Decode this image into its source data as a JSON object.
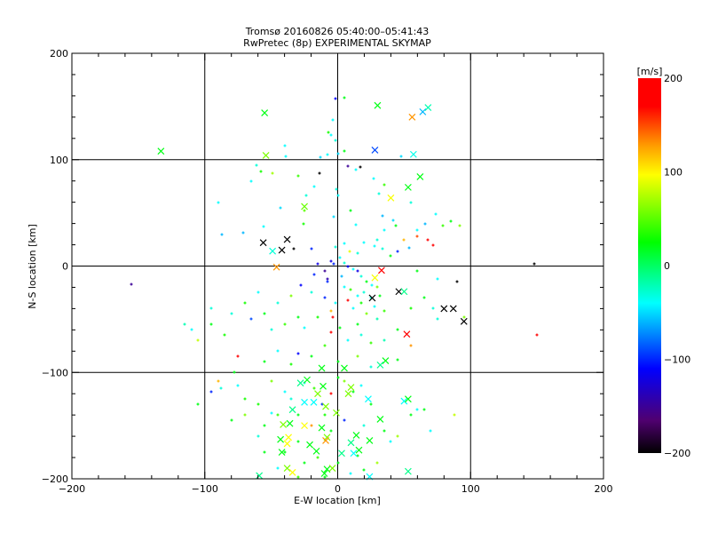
{
  "chart_data": {
    "type": "scatter",
    "title": "Tromsø 20160826 05:40:00–05:41:43",
    "subtitle": "RwPretec (8p) EXPERIMENTAL SKYMAP",
    "xlabel": "E-W location [km]",
    "ylabel": "N-S location [km]",
    "xlim": [
      -200,
      200
    ],
    "ylim": [
      -200,
      200
    ],
    "xticks": [
      "−200",
      "−100",
      "0",
      "100",
      "200"
    ],
    "xtick_values": [
      -200,
      -100,
      0,
      100,
      200
    ],
    "yticks": [
      "−200",
      "−100",
      "0",
      "100",
      "200"
    ],
    "ytick_values": [
      -200,
      -100,
      0,
      100,
      200
    ],
    "grid": true,
    "colorbar": {
      "label": "[m/s]",
      "range": [
        -200,
        200
      ],
      "ticks": [
        "200",
        "100",
        "0",
        "−100",
        "−200"
      ],
      "tick_values": [
        200,
        100,
        0,
        -100,
        -200
      ],
      "stops": [
        [
          -200,
          "#000000"
        ],
        [
          -165,
          "#500070"
        ],
        [
          -110,
          "#0000ff"
        ],
        [
          -40,
          "#00ffff"
        ],
        [
          25,
          "#00ff00"
        ],
        [
          97,
          "#ffff00"
        ],
        [
          127,
          "#ffa000"
        ],
        [
          170,
          "#ff0000"
        ],
        [
          200,
          "#ff0000"
        ]
      ]
    },
    "fields": [
      "x_km",
      "y_km",
      "velocity_ms"
    ],
    "crosses": [
      [
        -133,
        108,
        20
      ],
      [
        -55,
        144,
        20
      ],
      [
        -54,
        104,
        60
      ],
      [
        30,
        151,
        20
      ],
      [
        56,
        140,
        130
      ],
      [
        64,
        145,
        -60
      ],
      [
        68,
        149,
        -20
      ],
      [
        28,
        109,
        -90
      ],
      [
        57,
        105,
        -35
      ],
      [
        62,
        84,
        20
      ],
      [
        53,
        74,
        20
      ],
      [
        40,
        64,
        95
      ],
      [
        -25,
        56,
        55
      ],
      [
        -56,
        22,
        -200
      ],
      [
        -38,
        25,
        -200
      ],
      [
        -42,
        15,
        -200
      ],
      [
        -49,
        14,
        -30
      ],
      [
        -46,
        -1,
        130
      ],
      [
        33,
        -4,
        180
      ],
      [
        28,
        -11,
        95
      ],
      [
        46,
        -24,
        -200
      ],
      [
        50,
        -24,
        -10
      ],
      [
        26,
        -30,
        -200
      ],
      [
        80,
        -40,
        -200
      ],
      [
        87,
        -40,
        -200
      ],
      [
        95,
        -52,
        -200
      ],
      [
        52,
        -64,
        180
      ],
      [
        36,
        -89,
        20
      ],
      [
        32,
        -93,
        -10
      ],
      [
        -12,
        -96,
        20
      ],
      [
        5,
        -96,
        20
      ],
      [
        -28,
        -110,
        -10
      ],
      [
        -23,
        -107,
        20
      ],
      [
        -11,
        -113,
        20
      ],
      [
        10,
        -114,
        60
      ],
      [
        8,
        -120,
        60
      ],
      [
        23,
        -125,
        -40
      ],
      [
        50,
        -127,
        -40
      ],
      [
        53,
        -125,
        20
      ],
      [
        -34,
        -135,
        -10
      ],
      [
        -25,
        -128,
        -40
      ],
      [
        -18,
        -128,
        -40
      ],
      [
        -15,
        -120,
        60
      ],
      [
        -9,
        -132,
        60
      ],
      [
        -1,
        -138,
        60
      ],
      [
        32,
        -144,
        20
      ],
      [
        -41,
        -149,
        60
      ],
      [
        -36,
        -148,
        20
      ],
      [
        -25,
        -150,
        97
      ],
      [
        -12,
        -152,
        20
      ],
      [
        14,
        -159,
        20
      ],
      [
        -37,
        -161,
        97
      ],
      [
        -43,
        -163,
        20
      ],
      [
        -38,
        -167,
        97
      ],
      [
        -8,
        -161,
        60
      ],
      [
        -9,
        -164,
        130
      ],
      [
        -21,
        -168,
        20
      ],
      [
        10,
        -166,
        -10
      ],
      [
        24,
        -164,
        20
      ],
      [
        -16,
        -174,
        20
      ],
      [
        16,
        -173,
        20
      ],
      [
        12,
        -176,
        -40
      ],
      [
        3,
        -176,
        -10
      ],
      [
        -42,
        -175,
        20
      ],
      [
        -38,
        -190,
        60
      ],
      [
        -34,
        -194,
        97
      ],
      [
        -8,
        -191,
        20
      ],
      [
        -4,
        -190,
        60
      ],
      [
        -10,
        -195,
        20
      ],
      [
        53,
        -193,
        -10
      ],
      [
        -59,
        -197,
        -10
      ],
      [
        24,
        -198,
        -40
      ]
    ],
    "dots": [
      [
        -2,
        157,
        -110
      ],
      [
        5,
        158,
        20
      ],
      [
        -4,
        137,
        -40
      ],
      [
        -7,
        126,
        30
      ],
      [
        -5,
        123,
        -40
      ],
      [
        -2,
        118,
        -30
      ],
      [
        -40,
        113,
        -40
      ],
      [
        -61,
        95,
        -30
      ],
      [
        -39,
        103,
        -40
      ],
      [
        -8,
        105,
        -40
      ],
      [
        14,
        91,
        -40
      ],
      [
        -14,
        87,
        -200
      ],
      [
        17,
        93,
        -200
      ],
      [
        8,
        94,
        -150
      ],
      [
        -13,
        102,
        -50
      ],
      [
        0,
        106,
        -50
      ],
      [
        5,
        108,
        20
      ],
      [
        48,
        103,
        -50
      ],
      [
        85,
        42,
        20
      ],
      [
        92,
        38,
        60
      ],
      [
        -58,
        89,
        30
      ],
      [
        -65,
        80,
        -40
      ],
      [
        -49,
        87,
        70
      ],
      [
        -30,
        85,
        40
      ],
      [
        -18,
        75,
        -40
      ],
      [
        -24,
        66,
        -30
      ],
      [
        27,
        82,
        -40
      ],
      [
        35,
        76,
        40
      ],
      [
        -1,
        72,
        -30
      ],
      [
        0,
        66,
        -40
      ],
      [
        31,
        68,
        -30
      ],
      [
        55,
        60,
        -30
      ],
      [
        10,
        52,
        20
      ],
      [
        74,
        49,
        -40
      ],
      [
        -90,
        60,
        -40
      ],
      [
        -43,
        55,
        -50
      ],
      [
        -25,
        52,
        50
      ],
      [
        -87,
        30,
        -60
      ],
      [
        -71,
        31,
        -60
      ],
      [
        -56,
        37,
        -40
      ],
      [
        -26,
        40,
        30
      ],
      [
        -3,
        46,
        -50
      ],
      [
        14,
        39,
        -40
      ],
      [
        34,
        47,
        -60
      ],
      [
        42,
        43,
        -50
      ],
      [
        66,
        40,
        -60
      ],
      [
        44,
        38,
        20
      ],
      [
        35,
        34,
        -40
      ],
      [
        60,
        34,
        -40
      ],
      [
        79,
        38,
        40
      ],
      [
        30,
        25,
        -30
      ],
      [
        50,
        25,
        120
      ],
      [
        60,
        28,
        150
      ],
      [
        68,
        25,
        180
      ],
      [
        72,
        20,
        170
      ],
      [
        54,
        17,
        -60
      ],
      [
        45,
        14,
        -100
      ],
      [
        20,
        22,
        -40
      ],
      [
        28,
        19,
        -40
      ],
      [
        34,
        16,
        -30
      ],
      [
        -2,
        18,
        -30
      ],
      [
        5,
        21,
        -40
      ],
      [
        -33,
        16,
        -200
      ],
      [
        -20,
        16,
        -100
      ],
      [
        9,
        14,
        90
      ],
      [
        15,
        12,
        -30
      ],
      [
        40,
        10,
        20
      ],
      [
        -5,
        5,
        -120
      ],
      [
        -3,
        2,
        -100
      ],
      [
        2,
        8,
        -40
      ],
      [
        5,
        3,
        -30
      ],
      [
        8,
        0,
        -110
      ],
      [
        12,
        -3,
        -40
      ],
      [
        15,
        -5,
        -120
      ],
      [
        -10,
        -5,
        -150
      ],
      [
        -15,
        2,
        -120
      ],
      [
        -18,
        -8,
        -100
      ],
      [
        -8,
        -12,
        -140
      ],
      [
        3,
        -10,
        -60
      ],
      [
        18,
        -10,
        -30
      ],
      [
        22,
        -15,
        20
      ],
      [
        26,
        -18,
        -40
      ],
      [
        30,
        -20,
        60
      ],
      [
        20,
        -25,
        -30
      ],
      [
        15,
        -28,
        -40
      ],
      [
        10,
        -22,
        40
      ],
      [
        25,
        -30,
        -30
      ],
      [
        32,
        -28,
        20
      ],
      [
        18,
        -35,
        30
      ],
      [
        28,
        -38,
        -40
      ],
      [
        22,
        -45,
        60
      ],
      [
        30,
        -50,
        -20
      ],
      [
        15,
        -55,
        20
      ],
      [
        35,
        -42,
        40
      ],
      [
        12,
        -40,
        -40
      ],
      [
        8,
        -32,
        170
      ],
      [
        -2,
        -35,
        -40
      ],
      [
        -5,
        -42,
        120
      ],
      [
        -10,
        -30,
        -100
      ],
      [
        -20,
        -25,
        -30
      ],
      [
        -28,
        -18,
        -110
      ],
      [
        -35,
        -28,
        60
      ],
      [
        -45,
        -35,
        -30
      ],
      [
        -60,
        -25,
        -40
      ],
      [
        -70,
        -35,
        30
      ],
      [
        -80,
        -45,
        -30
      ],
      [
        -65,
        -50,
        -90
      ],
      [
        -55,
        -45,
        20
      ],
      [
        -50,
        -60,
        -30
      ],
      [
        -40,
        -55,
        40
      ],
      [
        -30,
        -48,
        20
      ],
      [
        -25,
        -58,
        -40
      ],
      [
        -15,
        -48,
        30
      ],
      [
        -5,
        -62,
        180
      ],
      [
        2,
        -58,
        20
      ],
      [
        8,
        -70,
        -40
      ],
      [
        18,
        -65,
        -30
      ],
      [
        25,
        -72,
        40
      ],
      [
        35,
        -70,
        -20
      ],
      [
        45,
        -60,
        20
      ],
      [
        55,
        -40,
        30
      ],
      [
        65,
        -30,
        20
      ],
      [
        75,
        -50,
        -30
      ],
      [
        90,
        -15,
        -200
      ],
      [
        95,
        -48,
        60
      ],
      [
        72,
        -40,
        -30
      ],
      [
        60,
        -5,
        20
      ],
      [
        75,
        -12,
        -40
      ],
      [
        -4,
        -48,
        170
      ],
      [
        -8,
        -15,
        -100
      ],
      [
        5,
        -20,
        -40
      ],
      [
        -30,
        -82,
        -110
      ],
      [
        -45,
        -80,
        -40
      ],
      [
        -55,
        -90,
        20
      ],
      [
        -75,
        -85,
        180
      ],
      [
        -78,
        -100,
        20
      ],
      [
        -85,
        -65,
        30
      ],
      [
        -95,
        -55,
        20
      ],
      [
        -105,
        -70,
        80
      ],
      [
        -110,
        -60,
        -40
      ],
      [
        -35,
        -92,
        30
      ],
      [
        -20,
        -85,
        20
      ],
      [
        -10,
        -75,
        40
      ],
      [
        0,
        -90,
        20
      ],
      [
        15,
        -85,
        60
      ],
      [
        25,
        -95,
        -30
      ],
      [
        45,
        -88,
        20
      ],
      [
        55,
        -75,
        130
      ],
      [
        -155,
        -17,
        -150
      ],
      [
        148,
        2,
        -200
      ],
      [
        150,
        -65,
        180
      ],
      [
        -95,
        -40,
        -30
      ],
      [
        -115,
        -55,
        -20
      ],
      [
        -95,
        -118,
        -100
      ],
      [
        -70,
        -125,
        30
      ],
      [
        -60,
        -130,
        30
      ],
      [
        -50,
        -108,
        60
      ],
      [
        -40,
        -118,
        -40
      ],
      [
        -35,
        -125,
        -30
      ],
      [
        -30,
        -140,
        20
      ],
      [
        -25,
        -110,
        -30
      ],
      [
        -18,
        -115,
        40
      ],
      [
        -12,
        -130,
        -100
      ],
      [
        -5,
        -120,
        170
      ],
      [
        0,
        -105,
        20
      ],
      [
        5,
        -108,
        60
      ],
      [
        12,
        -118,
        20
      ],
      [
        18,
        -112,
        -40
      ],
      [
        25,
        -130,
        20
      ],
      [
        -45,
        -140,
        40
      ],
      [
        -55,
        -150,
        20
      ],
      [
        -60,
        -160,
        -30
      ],
      [
        -70,
        -140,
        60
      ],
      [
        -80,
        -145,
        20
      ],
      [
        -20,
        -150,
        130
      ],
      [
        -5,
        -155,
        20
      ],
      [
        5,
        -145,
        -100
      ],
      [
        20,
        -150,
        -30
      ],
      [
        35,
        -155,
        20
      ],
      [
        45,
        -160,
        70
      ],
      [
        55,
        -140,
        20
      ],
      [
        65,
        -135,
        20
      ],
      [
        88,
        -140,
        80
      ],
      [
        70,
        -155,
        -40
      ],
      [
        -40,
        -175,
        20
      ],
      [
        -30,
        -165,
        20
      ],
      [
        -15,
        -180,
        40
      ],
      [
        0,
        -185,
        20
      ],
      [
        15,
        -178,
        20
      ],
      [
        30,
        -185,
        70
      ],
      [
        40,
        -165,
        -40
      ],
      [
        -45,
        -190,
        -40
      ],
      [
        -10,
        -198,
        20
      ],
      [
        20,
        -192,
        20
      ],
      [
        10,
        -195,
        -40
      ],
      [
        -25,
        -185,
        20
      ],
      [
        -55,
        -175,
        20
      ],
      [
        -30,
        -198,
        40
      ],
      [
        60,
        -135,
        -40
      ],
      [
        -90,
        -108,
        120
      ],
      [
        -88,
        -115,
        -30
      ],
      [
        -75,
        -112,
        -40
      ],
      [
        -105,
        -130,
        20
      ],
      [
        -10,
        -140,
        30
      ],
      [
        -50,
        -138,
        -40
      ]
    ]
  }
}
